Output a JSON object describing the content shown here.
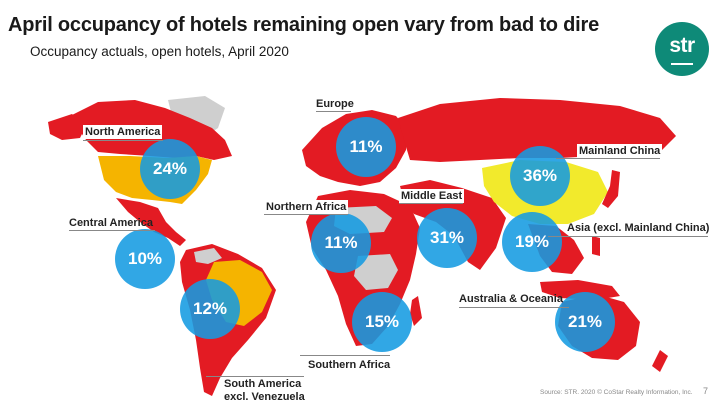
{
  "slide": {
    "title": "April occupancy of hotels remaining open vary from bad to dire",
    "subtitle": "Occupancy actuals, open hotels, April 2020",
    "logo_text": "str",
    "source": "Source: STR. 2020 © CoStar Realty Information, Inc.",
    "page_number": "7"
  },
  "colors": {
    "bubble": "#149be1",
    "map_red": "#e31b23",
    "map_yellow": "#f5b400",
    "map_light_yellow": "#f2ea2c",
    "map_grey": "#cfcfcf",
    "logo": "#0e8a78"
  },
  "regions": [
    {
      "label": "North America",
      "value": "24%",
      "color": "red"
    },
    {
      "label": "Europe",
      "value": "11%",
      "color": "red"
    },
    {
      "label": "Mainland China",
      "value": "36%",
      "color": "yellow"
    },
    {
      "label": "Central America",
      "value": "10%",
      "color": "red"
    },
    {
      "label": "Northern Africa",
      "value": "11%",
      "color": "red"
    },
    {
      "label": "Middle East",
      "value": "31%",
      "color": "red"
    },
    {
      "label": "Asia (excl. Mainland China)",
      "value": "19%",
      "color": "red"
    },
    {
      "label": "Australia & Oceania",
      "value": "21%",
      "color": "red"
    },
    {
      "label": "South America excl. Venezuela",
      "line1": "South America",
      "line2": "excl. Venezuela",
      "value": "12%",
      "color": "red"
    },
    {
      "label": "Southern Africa",
      "value": "15%",
      "color": "red"
    }
  ]
}
